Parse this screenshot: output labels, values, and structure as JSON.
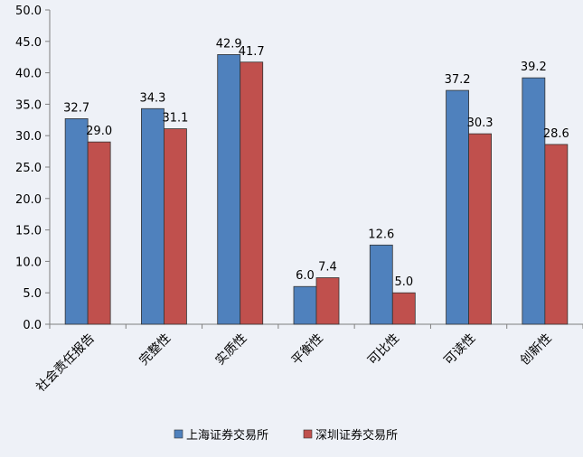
{
  "chart_data": {
    "type": "bar",
    "categories": [
      "社会责任报告",
      "完整性",
      "实质性",
      "平衡性",
      "可比性",
      "可读性",
      "创新性"
    ],
    "series": [
      {
        "name": "上海证券交易所",
        "color": "#4f81bd",
        "values": [
          32.7,
          34.3,
          42.9,
          6.0,
          12.6,
          37.2,
          39.2
        ]
      },
      {
        "name": "深圳证券交易所",
        "color": "#c0504d",
        "values": [
          29.0,
          31.1,
          41.7,
          7.4,
          5.0,
          30.3,
          28.6
        ]
      }
    ],
    "title": "",
    "xlabel": "",
    "ylabel": "",
    "ylim": [
      0,
      50
    ],
    "yticks": [
      "0.0",
      "5.0",
      "10.0",
      "15.0",
      "20.0",
      "25.0",
      "30.0",
      "35.0",
      "40.0",
      "45.0",
      "50.0"
    ],
    "grid": false,
    "legend": "bottom",
    "background": "#eef1f7"
  }
}
